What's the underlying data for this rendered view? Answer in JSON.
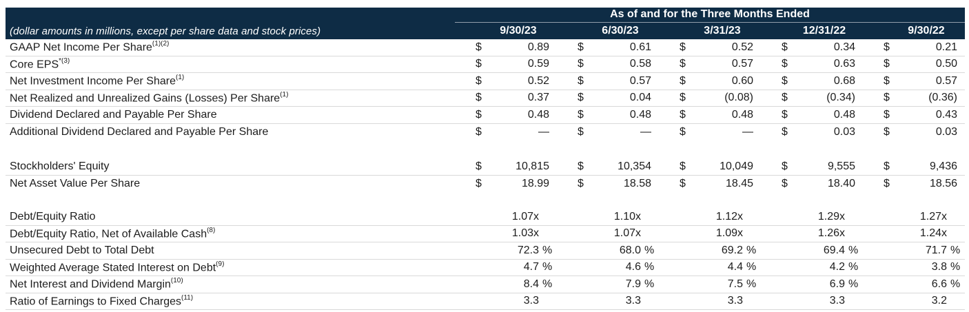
{
  "table": {
    "header": {
      "title": "As of and for the Three Months Ended",
      "subtitle": "(dollar amounts in millions, except per share data and stock prices)",
      "columns": [
        "9/30/23",
        "6/30/23",
        "3/31/23",
        "12/31/22",
        "9/30/22"
      ]
    },
    "colors": {
      "header_bg": "#0e2c45",
      "header_text": "#ffffff",
      "body_text": "#1c1c1c",
      "divider": "#d9d9d9"
    },
    "gaps": [
      26,
      24
    ],
    "sections": [
      {
        "name": "per-share-data",
        "trailing_border": false,
        "rows": [
          {
            "label": "GAAP Net Income Per Share",
            "sup": "(1)(2)",
            "cells": [
              {
                "p": "$",
                "v": "0.89"
              },
              {
                "p": "$",
                "v": "0.61"
              },
              {
                "p": "$",
                "v": "0.52"
              },
              {
                "p": "$",
                "v": "0.34"
              },
              {
                "p": "$",
                "v": "0.21"
              }
            ]
          },
          {
            "label": "Core EPS",
            "sup": "*(3)",
            "cells": [
              {
                "p": "$",
                "v": "0.59"
              },
              {
                "p": "$",
                "v": "0.58"
              },
              {
                "p": "$",
                "v": "0.57"
              },
              {
                "p": "$",
                "v": "0.63"
              },
              {
                "p": "$",
                "v": "0.50"
              }
            ]
          },
          {
            "label": "Net Investment Income Per Share",
            "sup": "(1)",
            "cells": [
              {
                "p": "$",
                "v": "0.52"
              },
              {
                "p": "$",
                "v": "0.57"
              },
              {
                "p": "$",
                "v": "0.60"
              },
              {
                "p": "$",
                "v": "0.68"
              },
              {
                "p": "$",
                "v": "0.57"
              }
            ]
          },
          {
            "label": "Net Realized and Unrealized Gains (Losses) Per Share",
            "sup": "(1)",
            "cells": [
              {
                "p": "$",
                "v": "0.37"
              },
              {
                "p": "$",
                "v": "0.04"
              },
              {
                "p": "$",
                "v": "(0.08)"
              },
              {
                "p": "$",
                "v": "(0.34)"
              },
              {
                "p": "$",
                "v": "(0.36)"
              }
            ]
          },
          {
            "label": "Dividend Declared and Payable Per Share",
            "sup": "",
            "cells": [
              {
                "p": "$",
                "v": "0.48"
              },
              {
                "p": "$",
                "v": "0.48"
              },
              {
                "p": "$",
                "v": "0.48"
              },
              {
                "p": "$",
                "v": "0.48"
              },
              {
                "p": "$",
                "v": "0.43"
              }
            ]
          },
          {
            "label": "Additional Dividend Declared and Payable Per Share",
            "sup": "",
            "cells": [
              {
                "p": "$",
                "v": "—"
              },
              {
                "p": "$",
                "v": "—"
              },
              {
                "p": "$",
                "v": "—"
              },
              {
                "p": "$",
                "v": "0.03"
              },
              {
                "p": "$",
                "v": "0.03"
              }
            ]
          }
        ]
      },
      {
        "name": "equity",
        "trailing_border": false,
        "rows": [
          {
            "label": "Stockholders' Equity",
            "sup": "",
            "cells": [
              {
                "p": "$",
                "v": "10,815"
              },
              {
                "p": "$",
                "v": "10,354"
              },
              {
                "p": "$",
                "v": "10,049"
              },
              {
                "p": "$",
                "v": "9,555"
              },
              {
                "p": "$",
                "v": "9,436"
              }
            ]
          },
          {
            "label": "Net Asset Value Per Share",
            "sup": "",
            "cells": [
              {
                "p": "$",
                "v": "18.99"
              },
              {
                "p": "$",
                "v": "18.58"
              },
              {
                "p": "$",
                "v": "18.45"
              },
              {
                "p": "$",
                "v": "18.40"
              },
              {
                "p": "$",
                "v": "18.56"
              }
            ]
          }
        ]
      },
      {
        "name": "leverage-ratios",
        "trailing_border": true,
        "rows": [
          {
            "label": "Debt/Equity Ratio",
            "sup": "",
            "cells": [
              {
                "v": "1.07x",
                "s": ""
              },
              {
                "v": "1.10x",
                "s": ""
              },
              {
                "v": "1.12x",
                "s": ""
              },
              {
                "v": "1.29x",
                "s": ""
              },
              {
                "v": "1.27x",
                "s": ""
              }
            ]
          },
          {
            "label": "Debt/Equity Ratio, Net of Available Cash",
            "sup": "(8)",
            "cells": [
              {
                "v": "1.03x",
                "s": ""
              },
              {
                "v": "1.07x",
                "s": ""
              },
              {
                "v": "1.09x",
                "s": ""
              },
              {
                "v": "1.26x",
                "s": ""
              },
              {
                "v": "1.24x",
                "s": ""
              }
            ]
          },
          {
            "label": "Unsecured Debt to Total Debt",
            "sup": "",
            "cells": [
              {
                "v": "72.3",
                "s": "%"
              },
              {
                "v": "68.0",
                "s": "%"
              },
              {
                "v": "69.2",
                "s": "%"
              },
              {
                "v": "69.4",
                "s": "%"
              },
              {
                "v": "71.7",
                "s": "%"
              }
            ]
          },
          {
            "label": "Weighted Average Stated Interest on Debt",
            "sup": "(9)",
            "cells": [
              {
                "v": "4.7",
                "s": "%"
              },
              {
                "v": "4.6",
                "s": "%"
              },
              {
                "v": "4.4",
                "s": "%"
              },
              {
                "v": "4.2",
                "s": "%"
              },
              {
                "v": "3.8",
                "s": "%"
              }
            ]
          },
          {
            "label": "Net Interest and Dividend Margin",
            "sup": "(10)",
            "cells": [
              {
                "v": "8.4",
                "s": "%"
              },
              {
                "v": "7.9",
                "s": "%"
              },
              {
                "v": "7.5",
                "s": "%"
              },
              {
                "v": "6.9",
                "s": "%"
              },
              {
                "v": "6.6",
                "s": "%"
              }
            ]
          },
          {
            "label": "Ratio of Earnings to Fixed Charges",
            "sup": "(11)",
            "cells": [
              {
                "v": "3.3",
                "s": ""
              },
              {
                "v": "3.3",
                "s": ""
              },
              {
                "v": "3.3",
                "s": ""
              },
              {
                "v": "3.3",
                "s": ""
              },
              {
                "v": "3.2",
                "s": ""
              }
            ]
          }
        ]
      }
    ]
  }
}
